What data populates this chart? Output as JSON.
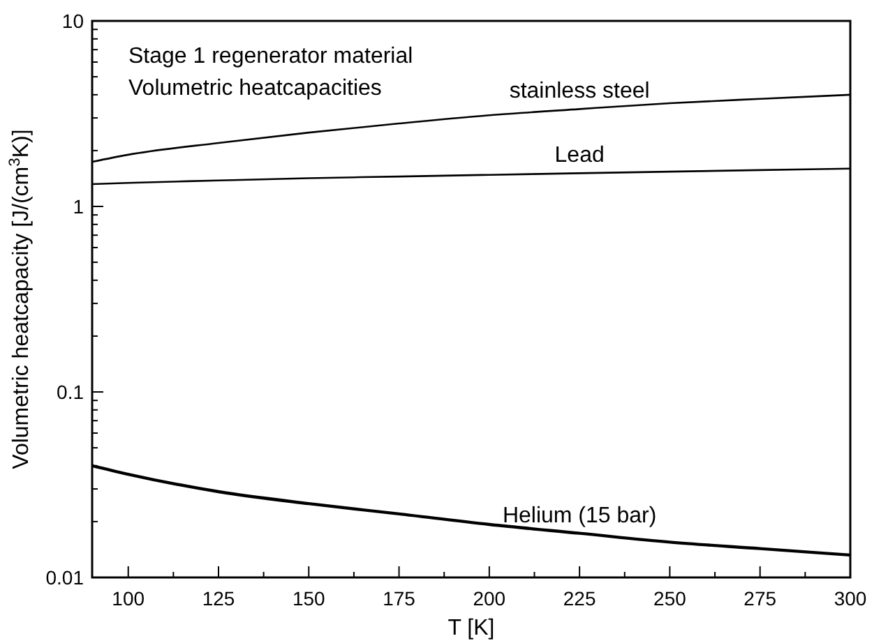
{
  "chart_data": {
    "type": "line",
    "xlabel": "T [K]",
    "ylabel": "Volumetric heatcapacity [J/(cm$^{3}$K)]",
    "annotations": [
      "Stage 1 regenerator material",
      "Volumetric heatcapacities"
    ],
    "x": [
      90,
      100,
      125,
      150,
      175,
      200,
      225,
      250,
      275,
      300
    ],
    "series": [
      {
        "name": "stainless steel",
        "color": "#000000",
        "values": [
          1.74,
          1.9,
          2.2,
          2.5,
          2.8,
          3.1,
          3.35,
          3.6,
          3.8,
          4.0
        ]
      },
      {
        "name": "Lead",
        "color": "#000000",
        "values": [
          1.32,
          1.34,
          1.38,
          1.42,
          1.45,
          1.48,
          1.51,
          1.54,
          1.57,
          1.6
        ]
      },
      {
        "name": "Helium (15 bar)",
        "color": "#000000",
        "values": [
          0.04,
          0.036,
          0.029,
          0.025,
          0.022,
          0.0193,
          0.0173,
          0.0155,
          0.0143,
          0.0132
        ]
      }
    ],
    "xlim": [
      90,
      300
    ],
    "xticks": [
      100,
      {
        "value": 112.5,
        "label": null
      },
      125,
      {
        "value": 137.5,
        "label": null
      },
      150,
      {
        "value": 162.5,
        "label": null
      },
      175,
      {
        "value": 187.5,
        "label": null
      },
      200,
      {
        "value": 212.5,
        "label": null
      },
      225,
      {
        "value": 237.5,
        "label": null
      },
      250,
      {
        "value": 262.5,
        "label": null
      },
      275,
      {
        "value": 287.5,
        "label": null
      },
      300
    ],
    "ylim": [
      0.01,
      10
    ],
    "yticks": [
      0.01,
      {
        "value": 0.02,
        "label": null
      },
      {
        "value": 0.03,
        "label": null
      },
      {
        "value": 0.04,
        "label": null
      },
      {
        "value": 0.05,
        "label": null
      },
      {
        "value": 0.06,
        "label": null
      },
      {
        "value": 0.07,
        "label": null
      },
      {
        "value": 0.08,
        "label": null
      },
      {
        "value": 0.09,
        "label": null
      },
      0.1,
      {
        "value": 0.2,
        "label": null
      },
      {
        "value": 0.3,
        "label": null
      },
      {
        "value": 0.4,
        "label": null
      },
      {
        "value": 0.5,
        "label": null
      },
      {
        "value": 0.6,
        "label": null
      },
      {
        "value": 0.7,
        "label": null
      },
      {
        "value": 0.8,
        "label": null
      },
      {
        "value": 0.9,
        "label": null
      },
      1,
      {
        "value": 2,
        "label": null
      },
      {
        "value": 3,
        "label": null
      },
      {
        "value": 4,
        "label": null
      },
      {
        "value": 5,
        "label": null
      },
      {
        "value": 6,
        "label": null
      },
      {
        "value": 7,
        "label": null
      },
      {
        "value": 8,
        "label": null
      },
      {
        "value": 9,
        "label": null
      },
      10
    ],
    "log": true,
    "grid": false,
    "marker": "none",
    "line_style": "solid"
  }
}
